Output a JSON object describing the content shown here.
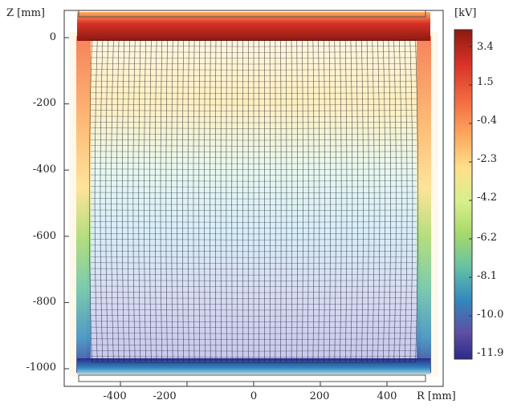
{
  "axis_labels": {
    "z": "Z [mm]",
    "r": "R [mm]",
    "colorbar_unit": "[kV]"
  },
  "y_ticks": [
    {
      "value": 0,
      "label": "0"
    },
    {
      "value": -200,
      "label": "-200"
    },
    {
      "value": -400,
      "label": "-400"
    },
    {
      "value": -600,
      "label": "-600"
    },
    {
      "value": -800,
      "label": "-800"
    },
    {
      "value": -1000,
      "label": "-1000"
    }
  ],
  "x_ticks": [
    {
      "value": -400,
      "label": "-400"
    },
    {
      "value": -200,
      "label": "-200"
    },
    {
      "value": 0,
      "label": "0"
    },
    {
      "value": 200,
      "label": "200"
    },
    {
      "value": 400,
      "label": "400"
    }
  ],
  "colorbar": {
    "ticks": [
      "3.4",
      "1.5",
      "-0.4",
      "-2.3",
      "-4.2",
      "-6.2",
      "-8.1",
      "-10.0",
      "-11.9"
    ],
    "colors": [
      "#8b1a10",
      "#d73027",
      "#f46d43",
      "#fdae61",
      "#fee08b",
      "#d9ef8b",
      "#a6d96a",
      "#66c2a5",
      "#3288bd",
      "#5e4fa2",
      "#2a2a8a"
    ]
  },
  "colors": {
    "grid_line": "#1a1a2e",
    "electrode": "#c62828"
  }
}
